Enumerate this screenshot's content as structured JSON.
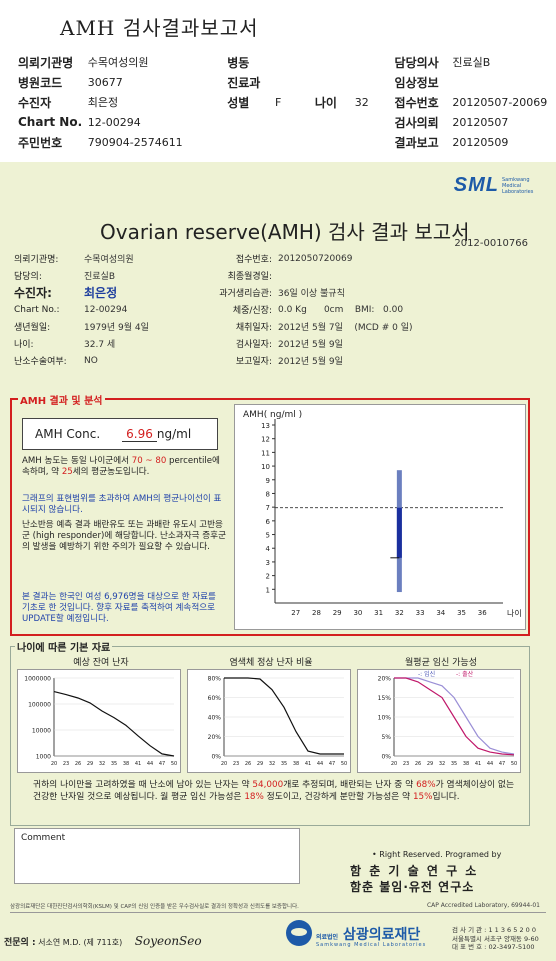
{
  "header": {
    "title": "AMH 검사결과보고서",
    "rows": [
      [
        {
          "l": "의뢰기관명",
          "v": "수목여성의원"
        },
        {
          "l": "병동",
          "v": ""
        },
        {
          "l": "담당의사",
          "v": "진료실B"
        }
      ],
      [
        {
          "l": "병원코드",
          "v": "30677"
        },
        {
          "l": "진료과",
          "v": ""
        },
        {
          "l": "임상정보",
          "v": ""
        }
      ],
      [
        {
          "l": "수진자",
          "v": "최은정"
        },
        {
          "l": "성별",
          "v": "F"
        },
        {
          "l": "나이",
          "v": "32"
        },
        {
          "l": "접수번호",
          "v": "20120507-20069"
        }
      ],
      [
        {
          "l": "Chart No.",
          "v": "12-00294"
        },
        {
          "l": "검사의뢰",
          "v": "20120507"
        }
      ],
      [
        {
          "l": "주민번호",
          "v": "790904-2574611"
        },
        {
          "l": "결과보고",
          "v": "20120509"
        }
      ]
    ]
  },
  "report": {
    "logo": "SML",
    "logo_sub": "Samkwang Medical Laboratories",
    "title": "Ovarian reserve(AMH) 검사 결과 보고서",
    "doc_no": "2012-0010766",
    "left": [
      {
        "l": "의뢰기관명:",
        "v": "수목여성의원"
      },
      {
        "l": "담당의:",
        "v": "진료실B"
      },
      {
        "l": "수진자:",
        "v": "최은정"
      },
      {
        "l": "Chart No.:",
        "v": "12-00294"
      },
      {
        "l": "생년월일:",
        "v": "1979년 9월 4일"
      },
      {
        "l": "나이:",
        "v": "32.7 세"
      },
      {
        "l": "난소수술여부:",
        "v": "NO"
      }
    ],
    "right": [
      {
        "l": "접수번호:",
        "v": "2012050720069"
      },
      {
        "l": "최종월경일:",
        "v": ""
      },
      {
        "l": "과거생리습관:",
        "v": "36일 이상 불규칙"
      },
      {
        "l": "체중/신장:",
        "v": "0.0 Kg      0cm    BMI:   0.00"
      },
      {
        "l": "채취일자:",
        "v": "2012년 5월 7일    (MCD # 0 일)"
      },
      {
        "l": "검사일자:",
        "v": "2012년 5월 9일"
      },
      {
        "l": "보고일자:",
        "v": "2012년 5월 9일"
      }
    ]
  },
  "amh": {
    "section_label": "AMH 결과 및 분석",
    "conc_label": "AMH Conc.",
    "conc_value": "6.96",
    "conc_unit": "ng/ml",
    "para1_a": "AMH 농도는 동일 나이군에서 ",
    "para1_range": "70 ~ 80",
    "para1_b": " percentile에 속하며, 약 ",
    "para1_age": "25",
    "para1_c": "세의 평균농도입니다.",
    "para2": "그래프의 표현범위를 초과하여 AMH의 평균나이선이 표시되지 않습니다.",
    "para3": "난소반응 예측 결과 배란유도 또는 과배란 유도시 고반응군 (high responder)에 해당합니다. 난소과자극 증후군의 발생을 예방하기 위한 주의가 필요할 수 있습니다.",
    "para4": "본 결과는 한국인 여성 6,976명을 대상으로 한 자료를 기초로 한 것입니다. 향후 자료를 축적하여 계속적으로 UPDATE할 예정입니다."
  },
  "age_section": {
    "label": "나이에 따른 기본 자료",
    "chart1_title": "예상 잔여 난자",
    "chart2_title": "염색체 정상 난자 비율",
    "chart3_title": "월평균 임신 가능성",
    "legend_preg": "-: 임신",
    "legend_birth": "-: 출산",
    "note_a": "귀하의 나이만을 고려하였을 때 난소에 남아 있는 난자는 약 ",
    "note_eggs": "54,000",
    "note_b": "개로 추정되며, 배란되는 난자 중 약 ",
    "note_pct": "68%",
    "note_c": "가 염색체이상이 없는 건강한 난자일 것으로 예상됩니다. 월 평균 임신 가능성은 ",
    "note_preg": "18%",
    "note_d": " 정도이고, 건강하게 분만할 가능성은 약 ",
    "note_birth": "15%",
    "note_e": "입니다."
  },
  "footer": {
    "comment_label": "Comment",
    "rights": "• Right Reserved.  Programed by",
    "lab1": "함 춘 기 술 연 구 소",
    "lab2": "함춘 불임·유전 연구소",
    "cert": "삼광의료재단은 대한진단검사의학회(KSLM) 및 CAP의 신임 인증을 받은 우수검사실로 결과의 정확성과 신뢰도를 보증합니다.",
    "cap": "CAP  Accredited  Laboratory,  69944-01",
    "doctor_label": "전문의 :",
    "doctor": "서소연 M.D. (제 711호)",
    "signature": "SoyeonSeo",
    "org_name": "삼광의료재단",
    "org_prefix": "의료법인",
    "org_sub": "Samkwang Medical Laboratories",
    "addr1": "검 사 기 관 : 1 1 3 6 5 2 0 0",
    "addr2": "서울특별시 서초구 양재동 9-60",
    "addr3": "대 표 번 호 : 02-3497-5100"
  },
  "chart_data": [
    {
      "type": "bar",
      "title": "",
      "ylabel": "AMH( ng/ml )",
      "xlabel": "나이",
      "x_ticks": [
        27,
        28,
        29,
        30,
        31,
        32,
        33,
        34,
        35,
        36
      ],
      "y_ticks": [
        1,
        2,
        3,
        4,
        5,
        6,
        7,
        8,
        9,
        10,
        11,
        12,
        13
      ],
      "ylim": [
        0,
        13
      ],
      "xlim": [
        26,
        37
      ],
      "reference_line": 6.96,
      "patient": {
        "age": 32,
        "amh": 6.96
      },
      "range_bar": {
        "age": 32,
        "low": 0.8,
        "high": 9.7,
        "iq_low": 3.3,
        "iq_high": 6.96
      }
    },
    {
      "type": "line",
      "title": "예상 잔여 난자",
      "y_scale": "log",
      "y_ticks": [
        "1000000",
        "100000",
        "10000",
        "1000"
      ],
      "x": [
        20,
        23,
        26,
        29,
        32,
        35,
        38,
        41,
        44,
        47,
        50
      ],
      "y": [
        300000,
        230000,
        170000,
        110000,
        54000,
        30000,
        15000,
        6000,
        2500,
        1200,
        1000
      ]
    },
    {
      "type": "line",
      "title": "염색체 정상 난자 비율",
      "y_ticks": [
        "80%",
        "60%",
        "40%",
        "20%",
        "0%"
      ],
      "x": [
        20,
        23,
        26,
        29,
        32,
        35,
        38,
        41,
        44,
        47,
        50
      ],
      "y": [
        88,
        86,
        83,
        79,
        68,
        50,
        25,
        5,
        2,
        2,
        2
      ]
    },
    {
      "type": "line",
      "title": "월평균 임신 가능성",
      "y_ticks": [
        "20%",
        "15%",
        "10%",
        "5%",
        "0%"
      ],
      "x": [
        20,
        23,
        26,
        29,
        32,
        35,
        38,
        41,
        44,
        47,
        50
      ],
      "series": [
        {
          "name": "-: 임신",
          "values": [
            21,
            21,
            20,
            19,
            18,
            15,
            10,
            5,
            2,
            1,
            0.5
          ]
        },
        {
          "name": "-: 출산",
          "values": [
            20,
            20,
            19,
            17,
            15,
            10,
            5,
            2,
            1,
            0.5,
            0.3
          ]
        }
      ]
    }
  ]
}
